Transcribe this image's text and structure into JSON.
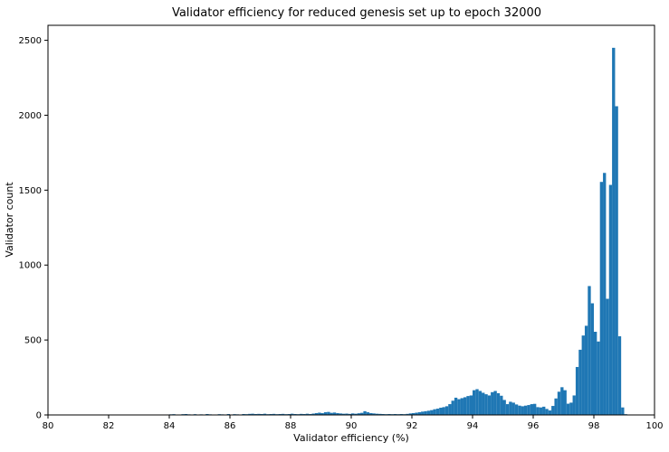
{
  "chart_data": {
    "type": "bar",
    "title": "Validator efficiency for reduced genesis set up to epoch 32000",
    "xlabel": "Validator efficiency (%)",
    "ylabel": "Validator count",
    "xlim": [
      80,
      100
    ],
    "ylim": [
      0,
      2600
    ],
    "xticks": [
      "80",
      "82",
      "84",
      "86",
      "88",
      "90",
      "92",
      "94",
      "96",
      "98",
      "100"
    ],
    "yticks": [
      "0",
      "500",
      "1000",
      "1500",
      "2000",
      "2500"
    ],
    "grid": false,
    "bar_color": "#1f77b4",
    "bin_width": 0.1,
    "bins": [
      [
        80.8,
        2
      ],
      [
        80.9,
        2
      ],
      [
        81.0,
        1
      ],
      [
        81.2,
        2
      ],
      [
        81.8,
        3
      ],
      [
        82.1,
        1
      ],
      [
        82.8,
        2
      ],
      [
        83.0,
        2
      ],
      [
        83.4,
        2
      ],
      [
        83.6,
        3
      ],
      [
        83.7,
        2
      ],
      [
        84.0,
        4
      ],
      [
        84.1,
        5
      ],
      [
        84.2,
        3
      ],
      [
        84.4,
        5
      ],
      [
        84.5,
        6
      ],
      [
        84.6,
        4
      ],
      [
        84.8,
        5
      ],
      [
        84.9,
        3
      ],
      [
        85.0,
        4
      ],
      [
        85.2,
        6
      ],
      [
        85.3,
        4
      ],
      [
        85.6,
        5
      ],
      [
        85.7,
        4
      ],
      [
        85.9,
        6
      ],
      [
        86.1,
        5
      ],
      [
        86.2,
        4
      ],
      [
        86.4,
        6
      ],
      [
        86.5,
        5
      ],
      [
        86.6,
        7
      ],
      [
        86.7,
        8
      ],
      [
        86.8,
        6
      ],
      [
        86.9,
        7
      ],
      [
        87.0,
        6
      ],
      [
        87.1,
        8
      ],
      [
        87.2,
        5
      ],
      [
        87.3,
        6
      ],
      [
        87.4,
        7
      ],
      [
        87.5,
        5
      ],
      [
        87.6,
        6
      ],
      [
        87.7,
        7
      ],
      [
        87.8,
        5
      ],
      [
        87.9,
        6
      ],
      [
        88.0,
        8
      ],
      [
        88.1,
        6
      ],
      [
        88.2,
        5
      ],
      [
        88.3,
        7
      ],
      [
        88.4,
        6
      ],
      [
        88.5,
        8
      ],
      [
        88.6,
        6
      ],
      [
        88.7,
        9
      ],
      [
        88.8,
        12
      ],
      [
        88.9,
        15
      ],
      [
        89.0,
        12
      ],
      [
        89.1,
        18
      ],
      [
        89.2,
        20
      ],
      [
        89.3,
        14
      ],
      [
        89.4,
        16
      ],
      [
        89.5,
        12
      ],
      [
        89.6,
        10
      ],
      [
        89.7,
        8
      ],
      [
        89.8,
        9
      ],
      [
        89.9,
        7
      ],
      [
        90.0,
        10
      ],
      [
        90.1,
        8
      ],
      [
        90.2,
        11
      ],
      [
        90.3,
        14
      ],
      [
        90.4,
        25
      ],
      [
        90.5,
        18
      ],
      [
        90.6,
        12
      ],
      [
        90.7,
        10
      ],
      [
        90.8,
        8
      ],
      [
        90.9,
        7
      ],
      [
        91.0,
        6
      ],
      [
        91.1,
        5
      ],
      [
        91.2,
        6
      ],
      [
        91.3,
        5
      ],
      [
        91.4,
        6
      ],
      [
        91.5,
        5
      ],
      [
        91.6,
        6
      ],
      [
        91.7,
        5
      ],
      [
        91.8,
        7
      ],
      [
        91.9,
        10
      ],
      [
        92.0,
        12
      ],
      [
        92.1,
        15
      ],
      [
        92.2,
        18
      ],
      [
        92.3,
        22
      ],
      [
        92.4,
        25
      ],
      [
        92.5,
        28
      ],
      [
        92.6,
        32
      ],
      [
        92.7,
        38
      ],
      [
        92.8,
        42
      ],
      [
        92.9,
        48
      ],
      [
        93.0,
        52
      ],
      [
        93.1,
        58
      ],
      [
        93.2,
        72
      ],
      [
        93.3,
        95
      ],
      [
        93.4,
        115
      ],
      [
        93.5,
        105
      ],
      [
        93.6,
        112
      ],
      [
        93.7,
        118
      ],
      [
        93.8,
        126
      ],
      [
        93.9,
        130
      ],
      [
        94.0,
        165
      ],
      [
        94.1,
        172
      ],
      [
        94.2,
        160
      ],
      [
        94.3,
        148
      ],
      [
        94.4,
        138
      ],
      [
        94.5,
        130
      ],
      [
        94.6,
        152
      ],
      [
        94.7,
        160
      ],
      [
        94.8,
        145
      ],
      [
        94.9,
        128
      ],
      [
        95.0,
        100
      ],
      [
        95.1,
        72
      ],
      [
        95.2,
        88
      ],
      [
        95.3,
        82
      ],
      [
        95.4,
        70
      ],
      [
        95.5,
        62
      ],
      [
        95.6,
        58
      ],
      [
        95.7,
        62
      ],
      [
        95.8,
        66
      ],
      [
        95.9,
        72
      ],
      [
        96.0,
        74
      ],
      [
        96.1,
        52
      ],
      [
        96.2,
        50
      ],
      [
        96.3,
        55
      ],
      [
        96.4,
        40
      ],
      [
        96.5,
        30
      ],
      [
        96.6,
        60
      ],
      [
        96.7,
        110
      ],
      [
        96.8,
        155
      ],
      [
        96.9,
        185
      ],
      [
        97.0,
        165
      ],
      [
        97.1,
        75
      ],
      [
        97.2,
        82
      ],
      [
        97.3,
        130
      ],
      [
        97.4,
        320
      ],
      [
        97.5,
        435
      ],
      [
        97.6,
        530
      ],
      [
        97.7,
        595
      ],
      [
        97.8,
        860
      ],
      [
        97.9,
        745
      ],
      [
        98.0,
        555
      ],
      [
        98.1,
        490
      ],
      [
        98.2,
        1555
      ],
      [
        98.3,
        1615
      ],
      [
        98.4,
        775
      ],
      [
        98.5,
        1535
      ],
      [
        98.6,
        2450
      ],
      [
        98.7,
        2060
      ],
      [
        98.8,
        525
      ],
      [
        98.9,
        50
      ],
      [
        99.0,
        5
      ]
    ]
  }
}
